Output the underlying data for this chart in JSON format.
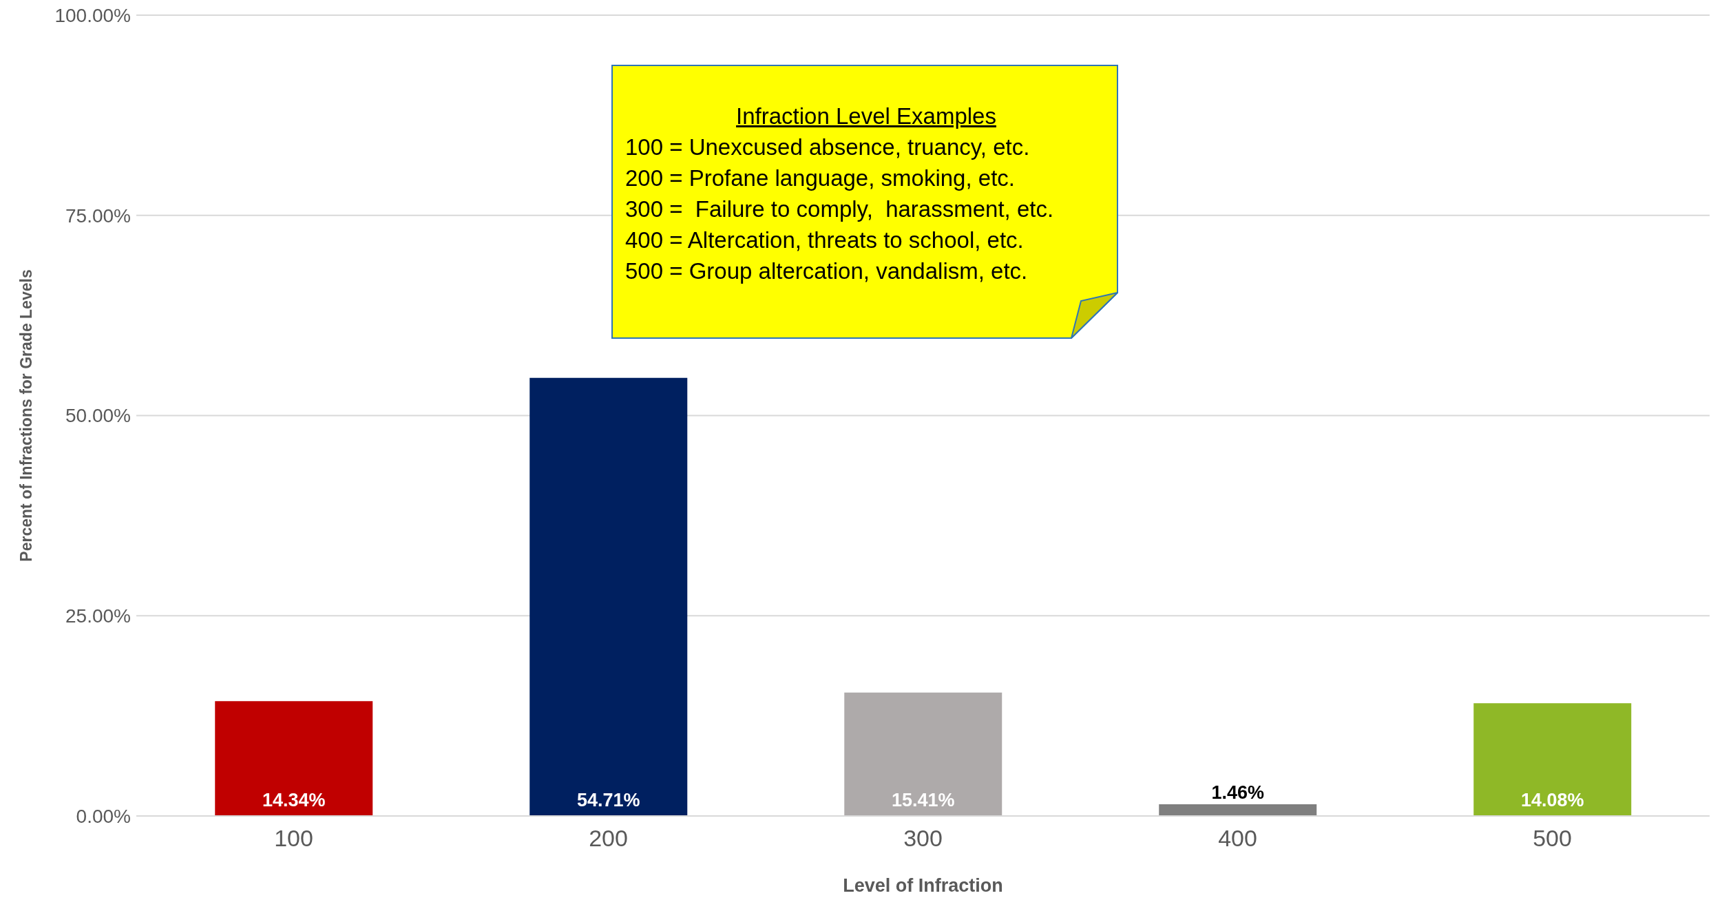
{
  "chart_data": {
    "type": "bar",
    "xlabel": "Level of Infraction",
    "ylabel": "Percent of Infractions for Grade Levels",
    "categories": [
      "100",
      "200",
      "300",
      "400",
      "500"
    ],
    "values": [
      14.34,
      54.71,
      15.41,
      1.46,
      14.08
    ],
    "value_labels": [
      "14.34%",
      "54.71%",
      "15.41%",
      "1.46%",
      "14.08%"
    ],
    "colors": [
      "#c00000",
      "#002060",
      "#aeaaaa",
      "#7f7f7f",
      "#8fb827"
    ],
    "ylim": [
      0,
      100
    ],
    "yticks": [
      {
        "value": 0,
        "label": "0.00%"
      },
      {
        "value": 25,
        "label": "25.00%"
      },
      {
        "value": 50,
        "label": "50.00%"
      },
      {
        "value": 75,
        "label": "75.00%"
      },
      {
        "value": 100,
        "label": "100.00%"
      }
    ],
    "grid": "y",
    "annotations": [
      "Infraction Level Examples",
      "100 = Unexcused absence, truancy, etc.",
      "200 = Profane language, smoking, etc.",
      "300 =  Failure to comply,  harassment, etc.",
      "400 = Altercation, threats to school, etc.",
      "500 = Group altercation, vandalism, etc."
    ]
  }
}
